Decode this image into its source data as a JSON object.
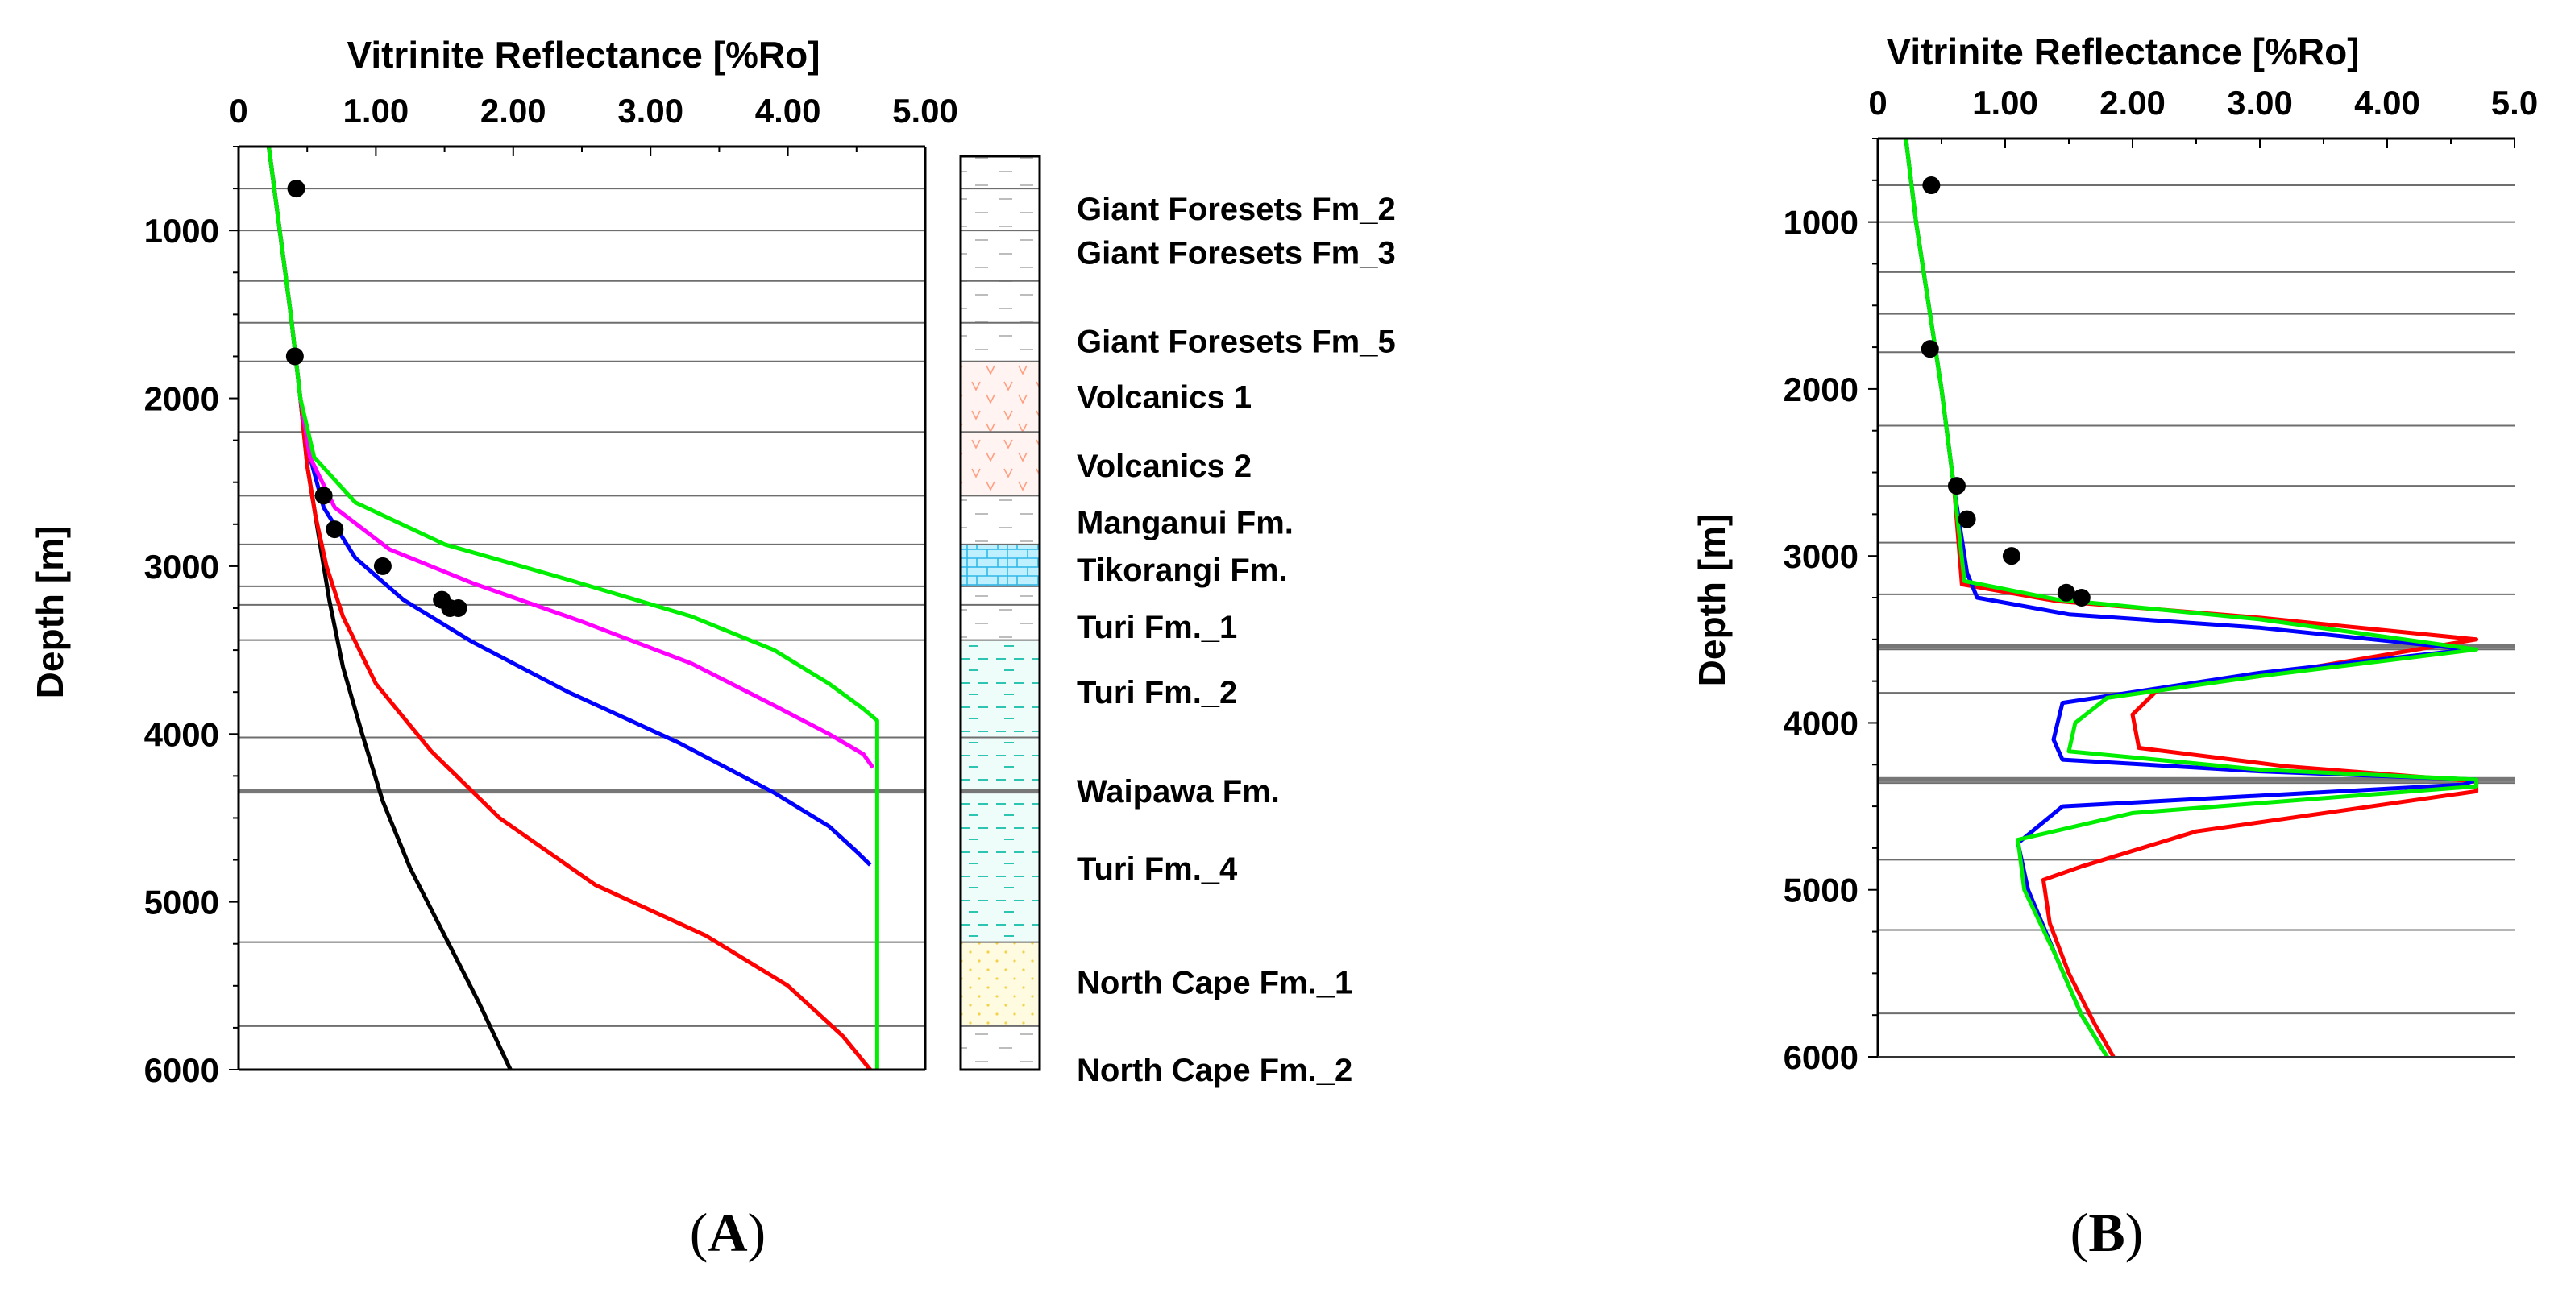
{
  "figure": {
    "panels": [
      "A",
      "B"
    ],
    "paren_open": "(",
    "paren_close": ")"
  },
  "chart_data": [
    {
      "panel": "A",
      "type": "line",
      "title": "Vitrinite Reflectance [%Ro]",
      "xlabel": "Vitrinite Reflectance [%Ro]",
      "ylabel": "Depth [m]",
      "xlim": [
        0,
        5
      ],
      "ylim": [
        6000,
        500
      ],
      "y_inverted": true,
      "x_ticks": [
        0,
        1,
        2,
        3,
        4,
        5
      ],
      "x_tick_labels": [
        "0",
        "1.00",
        "2.00",
        "3.00",
        "4.00",
        "5.00"
      ],
      "y_ticks": [
        1000,
        2000,
        3000,
        4000,
        5000,
        6000
      ],
      "y_tick_labels": [
        "1000",
        "2000",
        "3000",
        "4000",
        "5000",
        "6000"
      ],
      "horizon_depths": [
        750,
        1000,
        1300,
        1550,
        1780,
        2200,
        2580,
        2870,
        3120,
        3230,
        3440,
        4020,
        4340,
        5240,
        5740
      ],
      "thick_horizon_depth": 4340,
      "series": [
        {
          "name": "black",
          "color": "#000000",
          "x": [
            0.22,
            0.3,
            0.38,
            0.45,
            0.5,
            0.58,
            0.66,
            0.76,
            0.9,
            1.05,
            1.25,
            1.5,
            1.75,
            1.98
          ],
          "y": [
            500,
            1000,
            1500,
            2000,
            2400,
            2800,
            3200,
            3600,
            4000,
            4400,
            4800,
            5200,
            5600,
            6000
          ]
        },
        {
          "name": "red",
          "color": "#ff0000",
          "x": [
            0.22,
            0.3,
            0.38,
            0.45,
            0.5,
            0.56,
            0.64,
            0.76,
            1.0,
            1.4,
            1.9,
            2.6,
            3.4,
            4.0,
            4.4,
            4.6
          ],
          "y": [
            500,
            1000,
            1500,
            2000,
            2400,
            2700,
            3000,
            3300,
            3700,
            4100,
            4500,
            4900,
            5200,
            5500,
            5800,
            6000
          ]
        },
        {
          "name": "blue",
          "color": "#0000ff",
          "x": [
            0.22,
            0.3,
            0.38,
            0.45,
            0.52,
            0.62,
            0.85,
            1.2,
            1.7,
            2.4,
            3.2,
            3.9,
            4.3,
            4.5,
            4.6
          ],
          "y": [
            500,
            1000,
            1500,
            2000,
            2350,
            2650,
            2950,
            3200,
            3450,
            3750,
            4050,
            4350,
            4550,
            4700,
            4780
          ]
        },
        {
          "name": "magenta",
          "color": "#ff00ff",
          "x": [
            0.22,
            0.3,
            0.38,
            0.45,
            0.52,
            0.7,
            1.1,
            1.7,
            2.5,
            3.3,
            3.9,
            4.3,
            4.55,
            4.62
          ],
          "y": [
            500,
            1000,
            1500,
            2000,
            2350,
            2650,
            2900,
            3100,
            3330,
            3580,
            3830,
            4000,
            4120,
            4200
          ]
        },
        {
          "name": "green",
          "color": "#00ee00",
          "x": [
            0.22,
            0.3,
            0.38,
            0.45,
            0.55,
            0.85,
            1.5,
            2.4,
            3.3,
            3.9,
            4.3,
            4.55,
            4.65,
            4.65,
            4.65
          ],
          "y": [
            500,
            1000,
            1500,
            2000,
            2350,
            2620,
            2870,
            3080,
            3300,
            3500,
            3700,
            3850,
            3920,
            5000,
            6000
          ]
        }
      ],
      "measured": [
        {
          "x": 0.42,
          "y": 750
        },
        {
          "x": 0.41,
          "y": 1750
        },
        {
          "x": 0.62,
          "y": 2580
        },
        {
          "x": 0.7,
          "y": 2780
        },
        {
          "x": 1.05,
          "y": 3000
        },
        {
          "x": 1.48,
          "y": 3200
        },
        {
          "x": 1.54,
          "y": 3250
        },
        {
          "x": 1.6,
          "y": 3250
        }
      ],
      "lithology_column": [
        {
          "name": "Giant Foresets Fm_2",
          "top": 500,
          "bottom": 1300,
          "fill": "#ffffff",
          "pattern": "dash-gray"
        },
        {
          "name": "Giant Foresets Fm_3",
          "top": 1300,
          "bottom": 1780,
          "fill": "#ffffff",
          "pattern": "dash-gray"
        },
        {
          "name": "Volcanics 1",
          "top": 1780,
          "bottom": 2200,
          "fill": "#fff4f1",
          "pattern": "volcanic"
        },
        {
          "name": "Volcanics 2",
          "top": 2200,
          "bottom": 2580,
          "fill": "#fff4f1",
          "pattern": "volcanic"
        },
        {
          "name": "Manganui Fm.",
          "top": 2580,
          "bottom": 2870,
          "fill": "#ffffff",
          "pattern": "dash-gray"
        },
        {
          "name": "Tikorangi Fm.",
          "top": 2870,
          "bottom": 3120,
          "fill": "#bff0ff",
          "pattern": "limestone"
        },
        {
          "name": "Turi Fm._1",
          "top": 3120,
          "bottom": 3440,
          "fill": "#ffffff",
          "pattern": "dash-gray"
        },
        {
          "name": "Turi Fm._2",
          "top": 3440,
          "bottom": 5240,
          "fill": "#eefcfa",
          "pattern": "dash-teal"
        },
        {
          "name": "North Cape Fm._1",
          "top": 5240,
          "bottom": 5740,
          "fill": "#fffbe0",
          "pattern": "dot-yellow"
        },
        {
          "name": "North Cape Fm._2",
          "top": 5740,
          "bottom": 6000,
          "fill": "#ffffff",
          "pattern": "dash-gray"
        }
      ],
      "formation_labels": [
        {
          "text": "Giant Foresets Fm_2",
          "depth": 870
        },
        {
          "text": "Giant Foresets Fm_3",
          "depth": 1130
        },
        {
          "text": "Giant Foresets Fm_5",
          "depth": 1660
        },
        {
          "text": "Volcanics 1",
          "depth": 1990
        },
        {
          "text": "Volcanics 2",
          "depth": 2400
        },
        {
          "text": "Manganui Fm.",
          "depth": 2740
        },
        {
          "text": "Tikorangi Fm.",
          "depth": 3020
        },
        {
          "text": "Turi Fm._1",
          "depth": 3360
        },
        {
          "text": "Turi Fm._2",
          "depth": 3750
        },
        {
          "text": "Waipawa Fm.",
          "depth": 4340
        },
        {
          "text": "Turi Fm._4",
          "depth": 4800
        },
        {
          "text": "North Cape Fm._1",
          "depth": 5480
        },
        {
          "text": "North Cape Fm._2",
          "depth": 6000
        }
      ]
    },
    {
      "panel": "B",
      "type": "line",
      "title": "Vitrinite Reflectance [%Ro]",
      "xlabel": "Vitrinite Reflectance [%Ro]",
      "ylabel": "Depth [m]",
      "xlim": [
        0,
        5
      ],
      "ylim": [
        6000,
        500
      ],
      "y_inverted": true,
      "x_ticks": [
        0,
        1,
        2,
        3,
        4,
        5
      ],
      "x_tick_labels": [
        "0",
        "1.00",
        "2.00",
        "3.00",
        "4.00",
        "5.0"
      ],
      "y_ticks": [
        1000,
        2000,
        3000,
        4000,
        5000,
        6000
      ],
      "y_tick_labels": [
        "1000",
        "2000",
        "3000",
        "4000",
        "5000",
        "6000"
      ],
      "horizon_depths": [
        780,
        1000,
        1300,
        1550,
        1780,
        2220,
        2580,
        2920,
        3230,
        3530,
        3560,
        3820,
        4330,
        4360,
        4820,
        5240,
        5740
      ],
      "thick_horizon_depths": [
        3540,
        4340
      ],
      "series": [
        {
          "name": "red",
          "color": "#ff0000",
          "x": [
            0.22,
            0.3,
            0.4,
            0.5,
            0.6,
            0.66,
            1.4,
            3.0,
            4.7,
            3.0,
            2.2,
            2.0,
            2.05,
            3.2,
            4.7,
            4.7,
            2.5,
            1.6,
            1.3,
            1.35,
            1.5,
            1.7,
            1.85
          ],
          "y": [
            500,
            1000,
            1500,
            2000,
            2600,
            3170,
            3270,
            3370,
            3500,
            3720,
            3800,
            3950,
            4150,
            4260,
            4350,
            4410,
            4650,
            4860,
            4940,
            5200,
            5500,
            5800,
            6000
          ]
        },
        {
          "name": "blue",
          "color": "#0000ff",
          "x": [
            0.22,
            0.3,
            0.4,
            0.5,
            0.6,
            0.7,
            0.78,
            1.5,
            3.0,
            4.65,
            3.0,
            1.45,
            1.38,
            1.45,
            3.0,
            4.7,
            4.6,
            1.45,
            1.1,
            1.18,
            1.4,
            1.6,
            1.8
          ],
          "y": [
            500,
            1000,
            1500,
            2000,
            2600,
            3100,
            3250,
            3350,
            3430,
            3560,
            3700,
            3880,
            4100,
            4220,
            4290,
            4340,
            4370,
            4500,
            4720,
            5000,
            5400,
            5750,
            6000
          ]
        },
        {
          "name": "green",
          "color": "#00ee00",
          "x": [
            0.22,
            0.3,
            0.4,
            0.5,
            0.6,
            0.68,
            1.4,
            3.0,
            4.7,
            3.0,
            1.8,
            1.55,
            1.5,
            3.0,
            4.7,
            4.7,
            2.0,
            1.1,
            1.15,
            1.4,
            1.6,
            1.8
          ],
          "y": [
            500,
            1000,
            1500,
            2000,
            2600,
            3150,
            3260,
            3380,
            3560,
            3720,
            3850,
            4000,
            4170,
            4280,
            4340,
            4380,
            4540,
            4700,
            5000,
            5400,
            5750,
            6000
          ]
        }
      ],
      "measured": [
        {
          "x": 0.42,
          "y": 780
        },
        {
          "x": 0.41,
          "y": 1760
        },
        {
          "x": 0.62,
          "y": 2580
        },
        {
          "x": 0.7,
          "y": 2780
        },
        {
          "x": 1.05,
          "y": 3000
        },
        {
          "x": 1.48,
          "y": 3220
        },
        {
          "x": 1.6,
          "y": 3250
        }
      ]
    }
  ]
}
